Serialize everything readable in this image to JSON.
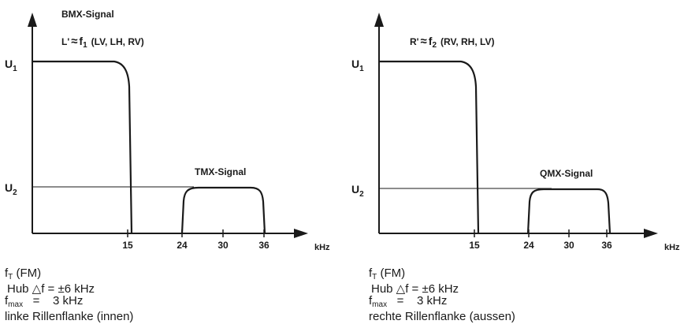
{
  "panels": [
    {
      "signal_label": "BMX-Signal",
      "secondary_label": "TMX-Signal",
      "formula": {
        "var": "L'",
        "approx": "≈",
        "f": "f",
        "f_sub": "1",
        "channels": "(LV, LH, RV)"
      },
      "u1": {
        "base": "U",
        "sub": "1"
      },
      "u2": {
        "base": "U",
        "sub": "2"
      },
      "ticks": [
        "15",
        "24",
        "30",
        "36"
      ],
      "unit": "kHz",
      "caption": {
        "line1_f": "f",
        "line1_sub": "T",
        "line1_rest": " (FM)",
        "line2": "Hub △f = ±6 kHz",
        "line3_f": "f",
        "line3_sub": "max",
        "line3_rest": "   =    3 kHz",
        "line4": "linke Rillenflanke (innen)"
      }
    },
    {
      "signal_label": "",
      "secondary_label": "QMX-Signal",
      "formula": {
        "var": "R'",
        "approx": "≈",
        "f": "f",
        "f_sub": "2",
        "channels": "(RV, RH, LV)"
      },
      "u1": {
        "base": "U",
        "sub": "1"
      },
      "u2": {
        "base": "U",
        "sub": "2"
      },
      "ticks": [
        "15",
        "24",
        "30",
        "36"
      ],
      "unit": "kHz",
      "caption": {
        "line1_f": "f",
        "line1_sub": "T",
        "line1_rest": " (FM)",
        "line2": "Hub △f = ±6 kHz",
        "line3_f": "f",
        "line3_sub": "max",
        "line3_rest": "   =    3 kHz",
        "line4": "rechte Rillenflanke (aussen)"
      }
    }
  ]
}
